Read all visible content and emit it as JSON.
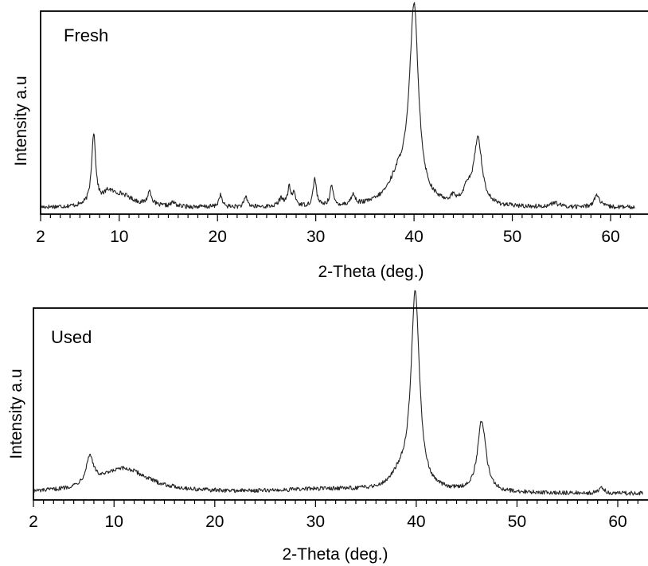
{
  "chart_data": [
    {
      "type": "line",
      "panel_label": "Fresh",
      "xlabel": "2-Theta (deg.)",
      "ylabel": "Intensity a.u",
      "xlim": [
        2,
        62.5
      ],
      "ylim": [
        0,
        100
      ],
      "x_ticks": [
        2,
        10,
        20,
        30,
        40,
        50,
        60
      ],
      "grid": false,
      "baseline": 2.5,
      "peaks": [
        {
          "x": 7.4,
          "y": 36,
          "w": 0.25
        },
        {
          "x": 8.9,
          "y": 5,
          "w": 0.6
        },
        {
          "x": 10.2,
          "y": 6,
          "w": 1.5
        },
        {
          "x": 13.1,
          "y": 7,
          "w": 0.25
        },
        {
          "x": 15.5,
          "y": 2,
          "w": 0.3
        },
        {
          "x": 20.3,
          "y": 6,
          "w": 0.2
        },
        {
          "x": 22.9,
          "y": 5,
          "w": 0.2
        },
        {
          "x": 26.5,
          "y": 4,
          "w": 0.3
        },
        {
          "x": 27.3,
          "y": 9,
          "w": 0.2
        },
        {
          "x": 27.8,
          "y": 6,
          "w": 0.2
        },
        {
          "x": 29.9,
          "y": 14,
          "w": 0.2
        },
        {
          "x": 31.6,
          "y": 10,
          "w": 0.2
        },
        {
          "x": 33.8,
          "y": 5,
          "w": 0.25
        },
        {
          "x": 38.5,
          "y": 14,
          "w": 1.3
        },
        {
          "x": 40.0,
          "y": 97,
          "w": 0.55
        },
        {
          "x": 44.0,
          "y": 3,
          "w": 0.3
        },
        {
          "x": 45.4,
          "y": 7,
          "w": 0.4
        },
        {
          "x": 46.5,
          "y": 34,
          "w": 0.5
        },
        {
          "x": 54.3,
          "y": 2,
          "w": 0.5
        },
        {
          "x": 58.6,
          "y": 6,
          "w": 0.35
        }
      ]
    },
    {
      "type": "line",
      "panel_label": "Used",
      "xlabel": "2-Theta (deg.)",
      "ylabel": "Intensity a.u",
      "xlim": [
        2,
        62.5
      ],
      "ylim": [
        0,
        100
      ],
      "x_ticks": [
        2,
        10,
        20,
        30,
        40,
        50,
        60
      ],
      "grid": false,
      "baseline": 2.5,
      "peaks": [
        {
          "x": 7.6,
          "y": 15,
          "w": 0.45
        },
        {
          "x": 11.0,
          "y": 13,
          "w": 3.0
        },
        {
          "x": 31.0,
          "y": 2,
          "w": 6.0
        },
        {
          "x": 38.5,
          "y": 8,
          "w": 1.2
        },
        {
          "x": 39.9,
          "y": 105,
          "w": 0.5
        },
        {
          "x": 46.5,
          "y": 38,
          "w": 0.5
        },
        {
          "x": 58.4,
          "y": 3,
          "w": 0.3
        }
      ]
    }
  ]
}
